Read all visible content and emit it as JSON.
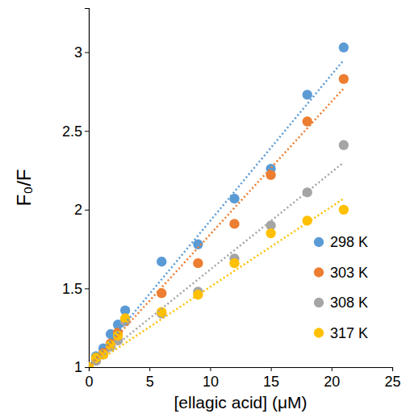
{
  "chart_data": {
    "type": "scatter",
    "x_label": "[ellagic acid] (μM)",
    "y_label": "F₀/F",
    "xlim": [
      0,
      25
    ],
    "xticks": [
      0,
      5,
      10,
      15,
      20,
      25
    ],
    "ylim": [
      1,
      3.28
    ],
    "yticks": [
      1,
      1.5,
      2,
      2.5,
      3
    ],
    "legend": "right",
    "series": [
      {
        "name": "298 K",
        "color": "#5b9bd5",
        "marker": "circle",
        "x": [
          0,
          0.6,
          1.2,
          1.8,
          2.4,
          3,
          6,
          9,
          12,
          15,
          18,
          21
        ],
        "values": [
          1.0,
          1.07,
          1.12,
          1.21,
          1.27,
          1.36,
          1.67,
          1.78,
          2.07,
          2.26,
          2.73,
          3.03
        ]
      },
      {
        "name": "303 K",
        "color": "#ed7d31",
        "marker": "circle",
        "x": [
          0,
          0.6,
          1.2,
          1.8,
          2.4,
          3,
          6,
          9,
          12,
          15,
          18,
          21
        ],
        "values": [
          1.0,
          1.05,
          1.09,
          1.15,
          1.22,
          1.3,
          1.47,
          1.66,
          1.91,
          2.22,
          2.56,
          2.83
        ]
      },
      {
        "name": "308 K",
        "color": "#a5a5a5",
        "marker": "circle",
        "x": [
          0,
          0.6,
          1.2,
          1.8,
          2.4,
          3,
          6,
          9,
          12,
          15,
          18,
          21
        ],
        "values": [
          1.0,
          1.04,
          1.08,
          1.13,
          1.17,
          1.29,
          1.34,
          1.48,
          1.69,
          1.9,
          2.11,
          2.41
        ]
      },
      {
        "name": "317 K",
        "color": "#ffc000",
        "marker": "circle",
        "x": [
          0,
          0.6,
          1.2,
          1.8,
          2.4,
          3,
          6,
          9,
          12,
          15,
          18,
          21
        ],
        "values": [
          1.0,
          1.06,
          1.08,
          1.14,
          1.2,
          1.31,
          1.35,
          1.46,
          1.66,
          1.85,
          1.93,
          2.0
        ]
      },
      {
        "type": "line",
        "line_style": "dotted",
        "color": "#5b9bd5",
        "x": [
          0,
          21
        ],
        "values": [
          1.0,
          2.95
        ]
      },
      {
        "type": "line",
        "line_style": "dotted",
        "color": "#ed7d31",
        "x": [
          0,
          21
        ],
        "values": [
          1.0,
          2.77
        ]
      },
      {
        "type": "line",
        "line_style": "dotted",
        "color": "#a5a5a5",
        "x": [
          0,
          21
        ],
        "values": [
          1.0,
          2.3
        ]
      },
      {
        "type": "line",
        "line_style": "dotted",
        "color": "#ffc000",
        "x": [
          0,
          21
        ],
        "values": [
          1.0,
          2.07
        ]
      }
    ]
  }
}
